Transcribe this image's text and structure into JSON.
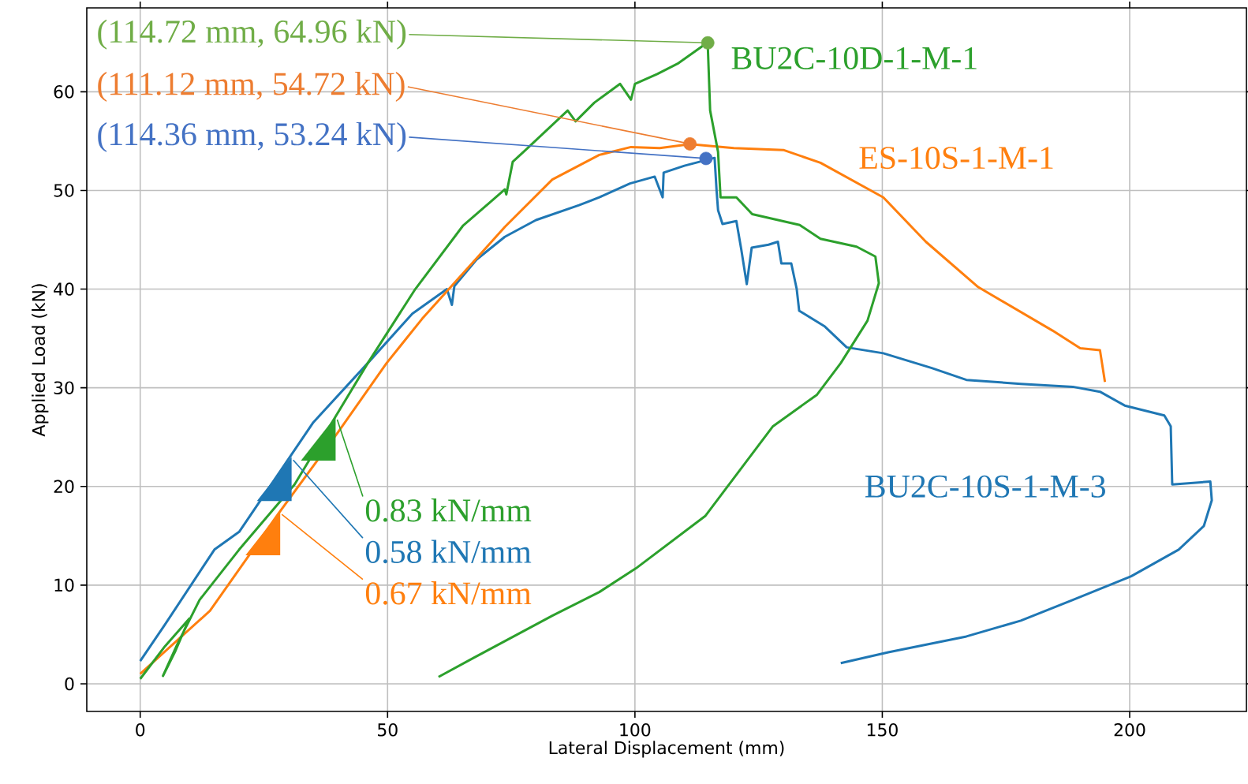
{
  "chart_data": {
    "type": "line",
    "xlabel": "Lateral Displacement (mm)",
    "ylabel": "Applied Load (kN)",
    "xlim": [
      -10.8,
      223.6
    ],
    "ylim": [
      -2.8,
      68.5
    ],
    "xticks": [
      0,
      50,
      100,
      150,
      200
    ],
    "yticks": [
      0,
      10,
      20,
      30,
      40,
      50,
      60
    ],
    "grid": true,
    "legend": false,
    "marker": "none",
    "line_style": "solid",
    "series": [
      {
        "name": "BU2C-10S-1-M-3",
        "color": "#1f77b4",
        "x": [
          0,
          5,
          15,
          20,
          35,
          46,
          55,
          62,
          63,
          63.5,
          68,
          73.7,
          80,
          88.7,
          92.8,
          99,
          104,
          105.6,
          105.8,
          110,
          116.1,
          116.5,
          116.8,
          117.7,
          120.5,
          121.5,
          122.6,
          123.6,
          127,
          128.9,
          129.6,
          131.6,
          132.7,
          133.2,
          138.4,
          142.8,
          150.2,
          160,
          167,
          178,
          188.5,
          194,
          199,
          207,
          208.3,
          208.6,
          216.3,
          216.6,
          215,
          209.9,
          200.3,
          188.5,
          178,
          167,
          151.2,
          141.6
        ],
        "values": [
          2.3,
          6.0,
          13.6,
          15.4,
          26.5,
          32.5,
          37.5,
          40.0,
          38.4,
          40.3,
          43.0,
          45.3,
          47.0,
          48.5,
          49.3,
          50.7,
          51.4,
          49.3,
          51.8,
          52.5,
          53.3,
          50,
          48,
          46.6,
          46.9,
          44.0,
          40.5,
          44.2,
          44.5,
          44.8,
          42.6,
          42.6,
          40.0,
          37.8,
          36.2,
          34.1,
          33.5,
          32.0,
          30.8,
          30.4,
          30.1,
          29.6,
          28.2,
          27.2,
          26.1,
          20.2,
          20.5,
          18.6,
          16.0,
          13.6,
          10.9,
          8.5,
          6.4,
          4.8,
          3.2,
          2.1
        ]
      },
      {
        "name": "ES-10S-1-M-1",
        "color": "#ff7f0e",
        "x": [
          0,
          14.1,
          28,
          40,
          49.8,
          57,
          64,
          73.7,
          83.3,
          92.8,
          99.2,
          105,
          111.1,
          120,
          130,
          137.5,
          150.2,
          158.8,
          169.4,
          184.4,
          190,
          194,
          195
        ],
        "values": [
          1.0,
          7.4,
          17.3,
          25.5,
          32.5,
          37,
          40.9,
          46.3,
          51.1,
          53.6,
          54.4,
          54.3,
          54.7,
          54.3,
          54.1,
          52.8,
          49.3,
          44.8,
          40.2,
          35.8,
          34.0,
          33.8,
          30.6
        ]
      },
      {
        "name": "BU2C-10D-1-M-1",
        "color": "#2ca02c",
        "x": [
          0,
          5,
          9.9,
          7,
          4.6,
          7.5,
          12,
          20,
          31.2,
          46,
          55.6,
          65.2,
          73.7,
          74,
          75.3,
          77.9,
          86.4,
          88,
          91.8,
          97,
          99.2,
          100,
          104.5,
          108.8,
          114.7,
          115.2,
          116.8,
          117.3,
          120.5,
          123.7,
          133.3,
          137.5,
          144.8,
          148.6,
          149.3,
          147,
          141.6,
          136.8,
          127.9,
          114.2,
          100.2,
          92.8,
          83.3,
          67.3,
          60.3
        ],
        "values": [
          0.5,
          3.8,
          6.6,
          3.2,
          0.8,
          4,
          8.5,
          13.6,
          20.2,
          32.5,
          40.0,
          46.4,
          50.1,
          49.6,
          52.9,
          54.1,
          58.1,
          57.0,
          58.9,
          60.8,
          59.2,
          60.8,
          61.8,
          62.9,
          65.0,
          58.1,
          53.9,
          49.3,
          49.3,
          47.6,
          46.5,
          45.1,
          44.3,
          43.3,
          40.6,
          36.8,
          32.5,
          29.3,
          26.1,
          17.0,
          11.7,
          9.3,
          6.9,
          2.6,
          0.7
        ]
      },
      {
        "type": "scatter",
        "marker": "circle",
        "color": "#70ad47",
        "x": [
          114.72
        ],
        "values": [
          64.96
        ]
      },
      {
        "type": "scatter",
        "marker": "circle",
        "color": "#ed7d31",
        "x": [
          111.12
        ],
        "values": [
          54.72
        ]
      },
      {
        "type": "scatter",
        "marker": "circle",
        "color": "#4472c4",
        "x": [
          114.36
        ],
        "values": [
          53.24
        ]
      }
    ],
    "annotations": [
      {
        "text": "(114.72 mm, 64.96 kN)",
        "x": 114.72,
        "y": 64.96
      },
      {
        "text": "(111.12 mm, 54.72 kN)",
        "x": 111.12,
        "y": 54.72
      },
      {
        "text": "(114.36 mm, 53.24 kN)",
        "x": 114.36,
        "y": 53.24
      },
      {
        "text": "0.83 kN/mm",
        "x": 39.5,
        "y": 27.1
      },
      {
        "text": "0.58 kN/mm",
        "x": 30.6,
        "y": 23.0
      },
      {
        "text": "0.67 kN/mm",
        "x": 28.3,
        "y": 17.5
      }
    ]
  }
}
